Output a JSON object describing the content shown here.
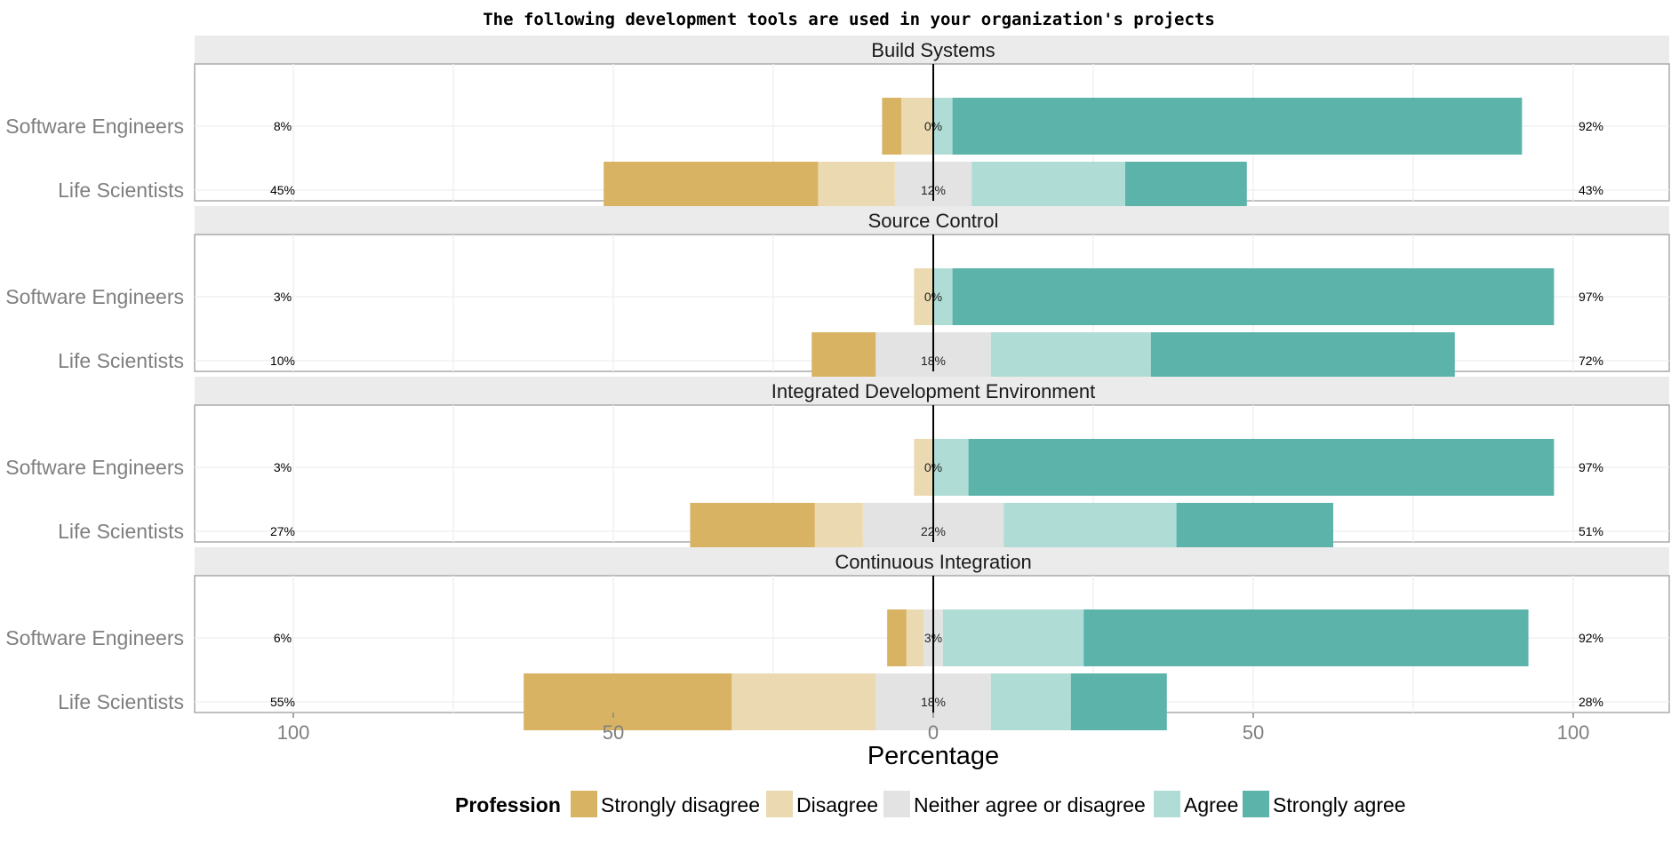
{
  "chart_data": {
    "type": "bar",
    "subtype": "diverging-stacked-likert",
    "title": "The following development tools are used in your organization's projects",
    "xlabel": "Percentage",
    "xlim": [
      -100,
      100
    ],
    "xticks": [
      {
        "value": -100,
        "label": "100"
      },
      {
        "value": -50,
        "label": "50"
      },
      {
        "value": 0,
        "label": "0"
      },
      {
        "value": 50,
        "label": "50"
      },
      {
        "value": 100,
        "label": "100"
      }
    ],
    "legend": {
      "title": "Profession",
      "position": "bottom",
      "items": [
        {
          "label": "Strongly disagree",
          "color": "#D7B363"
        },
        {
          "label": "Disagree",
          "color": "#EBDAB1"
        },
        {
          "label": "Neither agree or disagree",
          "color": "#E3E3E3"
        },
        {
          "label": "Agree",
          "color": "#B0DCD6"
        },
        {
          "label": "Strongly agree",
          "color": "#5BB3AA"
        }
      ]
    },
    "panels": [
      {
        "title": "Build Systems",
        "rows": [
          {
            "label": "Software Engineers",
            "values": [
              3,
              5,
              0,
              3,
              89
            ],
            "left_label": "8%",
            "center_label": "0%",
            "right_label": "92%"
          },
          {
            "label": "Life Scientists",
            "values": [
              33.5,
              12,
              12,
              24,
              19
            ],
            "left_label": "45%",
            "center_label": "12%",
            "right_label": "43%"
          }
        ]
      },
      {
        "title": "Source Control",
        "rows": [
          {
            "label": "Software Engineers",
            "values": [
              0,
              3,
              0,
              3,
              94
            ],
            "left_label": "3%",
            "center_label": "0%",
            "right_label": "97%"
          },
          {
            "label": "Life Scientists",
            "values": [
              10,
              0,
              18,
              25,
              47.5
            ],
            "left_label": "10%",
            "center_label": "18%",
            "right_label": "72%"
          }
        ]
      },
      {
        "title": "Integrated Development Environment",
        "rows": [
          {
            "label": "Software Engineers",
            "values": [
              0,
              3,
              0,
              5.5,
              91.5
            ],
            "left_label": "3%",
            "center_label": "0%",
            "right_label": "97%"
          },
          {
            "label": "Life Scientists",
            "values": [
              19.5,
              7.5,
              22,
              27,
              24.5
            ],
            "left_label": "27%",
            "center_label": "22%",
            "right_label": "51%"
          }
        ]
      },
      {
        "title": "Continuous Integration",
        "rows": [
          {
            "label": "Software Engineers",
            "values": [
              3,
              2.7,
              3,
              22,
              69.5
            ],
            "left_label": "6%",
            "center_label": "3%",
            "right_label": "92%"
          },
          {
            "label": "Life Scientists",
            "values": [
              32.5,
              22.5,
              18,
              12.5,
              15
            ],
            "left_label": "55%",
            "center_label": "18%",
            "right_label": "28%"
          }
        ]
      }
    ]
  }
}
